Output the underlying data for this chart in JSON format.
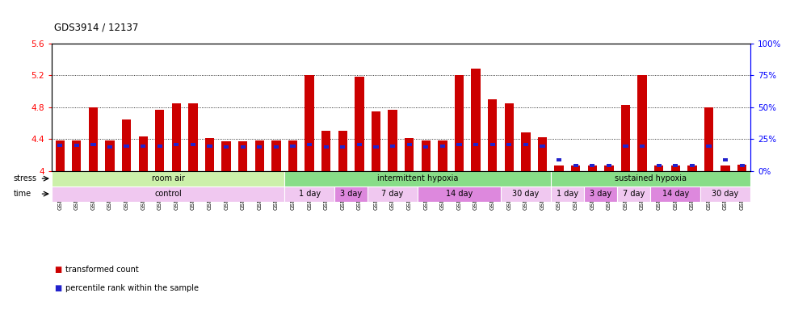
{
  "title": "GDS3914 / 12137",
  "samples": [
    "GSM215660",
    "GSM215661",
    "GSM215662",
    "GSM215663",
    "GSM215664",
    "GSM215665",
    "GSM215666",
    "GSM215667",
    "GSM215668",
    "GSM215669",
    "GSM215670",
    "GSM215671",
    "GSM215672",
    "GSM215673",
    "GSM215674",
    "GSM215675",
    "GSM215676",
    "GSM215677",
    "GSM215678",
    "GSM215679",
    "GSM215680",
    "GSM215681",
    "GSM215682",
    "GSM215683",
    "GSM215684",
    "GSM215685",
    "GSM215686",
    "GSM215687",
    "GSM215688",
    "GSM215689",
    "GSM215690",
    "GSM215691",
    "GSM215692",
    "GSM215693",
    "GSM215694",
    "GSM215695",
    "GSM215696",
    "GSM215697",
    "GSM215698",
    "GSM215699",
    "GSM215700",
    "GSM215701"
  ],
  "red_values": [
    4.38,
    4.38,
    4.8,
    4.38,
    4.65,
    4.43,
    4.77,
    4.85,
    4.85,
    4.41,
    4.37,
    4.37,
    4.38,
    4.38,
    4.38,
    5.2,
    4.5,
    4.5,
    5.18,
    4.75,
    4.77,
    4.41,
    4.38,
    4.38,
    5.2,
    5.28,
    4.9,
    4.85,
    4.48,
    4.42,
    4.07,
    4.07,
    4.07,
    4.07,
    4.83,
    5.2,
    4.07,
    4.07,
    4.07,
    4.8,
    4.07,
    4.08
  ],
  "blue_heights": [
    4.32,
    4.32,
    4.33,
    4.3,
    4.31,
    4.31,
    4.31,
    4.33,
    4.33,
    4.31,
    4.3,
    4.3,
    4.3,
    4.3,
    4.31,
    4.33,
    4.3,
    4.3,
    4.33,
    4.3,
    4.31,
    4.33,
    4.3,
    4.31,
    4.33,
    4.33,
    4.33,
    4.33,
    4.33,
    4.31,
    4.14,
    4.07,
    4.07,
    4.07,
    4.31,
    4.31,
    4.07,
    4.07,
    4.07,
    4.31,
    4.14,
    4.07
  ],
  "ylim": [
    4.0,
    5.6
  ],
  "yticks": [
    4.0,
    4.4,
    4.8,
    5.2,
    5.6
  ],
  "stress_data": [
    {
      "label": "room air",
      "start": 0,
      "end": 14,
      "color": "#ccf0aa"
    },
    {
      "label": "intermittent hypoxia",
      "start": 14,
      "end": 30,
      "color": "#88dd88"
    },
    {
      "label": "sustained hypoxia",
      "start": 30,
      "end": 42,
      "color": "#88dd88"
    }
  ],
  "time_data": [
    {
      "label": "control",
      "start": 0,
      "end": 14,
      "color": "#f0c8f0"
    },
    {
      "label": "1 day",
      "start": 14,
      "end": 17,
      "color": "#f0c8f0"
    },
    {
      "label": "3 day",
      "start": 17,
      "end": 19,
      "color": "#dd88dd"
    },
    {
      "label": "7 day",
      "start": 19,
      "end": 22,
      "color": "#f0c8f0"
    },
    {
      "label": "14 day",
      "start": 22,
      "end": 27,
      "color": "#dd88dd"
    },
    {
      "label": "30 day",
      "start": 27,
      "end": 30,
      "color": "#f0c8f0"
    },
    {
      "label": "1 day",
      "start": 30,
      "end": 32,
      "color": "#f0c8f0"
    },
    {
      "label": "3 day",
      "start": 32,
      "end": 34,
      "color": "#dd88dd"
    },
    {
      "label": "7 day",
      "start": 34,
      "end": 36,
      "color": "#f0c8f0"
    },
    {
      "label": "14 day",
      "start": 36,
      "end": 39,
      "color": "#dd88dd"
    },
    {
      "label": "30 day",
      "start": 39,
      "end": 42,
      "color": "#f0c8f0"
    }
  ],
  "red_color": "#cc0000",
  "blue_color": "#2222cc",
  "bar_width": 0.55
}
